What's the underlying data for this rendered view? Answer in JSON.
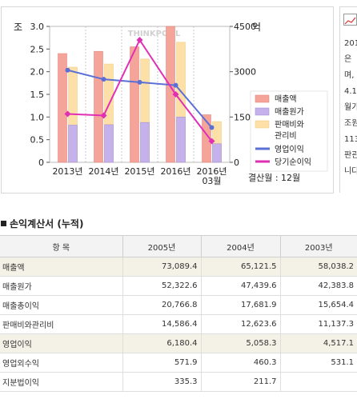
{
  "chart_data": {
    "type": "bar",
    "left_axis_unit": "조",
    "right_axis_unit": "억",
    "watermark": "THINKPOOL",
    "categories": [
      [
        "2013년"
      ],
      [
        "2014년"
      ],
      [
        "2015년"
      ],
      [
        "2016년"
      ],
      [
        "2016년",
        "03월"
      ]
    ],
    "left_axis": {
      "min": 0,
      "max": 3.0,
      "ticks": [
        "0",
        "0.5",
        "1.0",
        "1.5",
        "2.0",
        "2.5",
        "3.0"
      ]
    },
    "right_axis": {
      "min": 0,
      "max": 4500,
      "ticks": [
        "0",
        "1500",
        "3000",
        "4500"
      ]
    },
    "bar_series": [
      {
        "name": "매출액",
        "color": "#f5a49a",
        "values": [
          2.4,
          2.45,
          2.55,
          3.0,
          1.05
        ]
      },
      {
        "name": "매출원가",
        "color": "#c5b2ea",
        "values": [
          0.82,
          0.83,
          0.88,
          1.0,
          0.41
        ]
      },
      {
        "name": "판매비와관리비",
        "color": "#fde0a8",
        "values": [
          2.1,
          2.17,
          2.28,
          2.65,
          0.9
        ]
      }
    ],
    "line_series": [
      {
        "name": "영업이익",
        "color": "#5b6fd6",
        "values": [
          3050,
          2750,
          2650,
          2550,
          1150
        ]
      },
      {
        "name": "당기순이익",
        "color": "#e12fb5",
        "values": [
          1600,
          1550,
          4050,
          2250,
          700
        ]
      }
    ],
    "legend": [
      "매출액",
      "매출원가",
      "판매비와관리비",
      "영업이익",
      "당기순이익"
    ],
    "footnote": "결산월 : 12월"
  },
  "side_text": [
    "201",
    "은",
    "며,",
    "4.1",
    "월가",
    "조원",
    "113",
    "판관",
    "니다"
  ],
  "section_title": "손익계산서 (누적)",
  "table": {
    "headers": [
      "항 목",
      "2005년",
      "2004년",
      "2003년"
    ],
    "rows": [
      {
        "label": "매출액",
        "values": [
          "73,089.4",
          "65,121.5",
          "58,038.2"
        ],
        "highlight": true
      },
      {
        "label": "매출원가",
        "values": [
          "52,322.6",
          "47,439.6",
          "42,383.8"
        ],
        "highlight": false
      },
      {
        "label": "매출총이익",
        "values": [
          "20,766.8",
          "17,681.9",
          "15,654.4"
        ],
        "highlight": false
      },
      {
        "label": "판매비와관리비",
        "values": [
          "14,586.4",
          "12,623.6",
          "11,137.3"
        ],
        "highlight": false
      },
      {
        "label": "영업이익",
        "values": [
          "6,180.4",
          "5,058.3",
          "4,517.1"
        ],
        "highlight": true
      },
      {
        "label": "영업외수익",
        "values": [
          "571.9",
          "460.3",
          "531.1"
        ],
        "highlight": false
      },
      {
        "label": "지분법이익",
        "values": [
          "335.3",
          "211.7",
          ""
        ],
        "highlight": false
      }
    ]
  }
}
